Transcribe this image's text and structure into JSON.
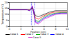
{
  "chart_data": {
    "type": "line",
    "x_label": "Position (cm)",
    "y_label": "Temperature (°C)",
    "x": [
      0,
      1,
      2,
      3,
      3.5,
      4,
      4.5,
      5,
      5.5,
      6,
      7,
      8,
      9,
      10
    ],
    "series": [
      {
        "name": "Case 1",
        "color": "#000000",
        "values": [
          14,
          14,
          14,
          14,
          14,
          15,
          9,
          8,
          9,
          10,
          12,
          13,
          13,
          13
        ]
      },
      {
        "name": "Case 2",
        "color": "#ff0000",
        "values": [
          14,
          14,
          14,
          14,
          13.5,
          15.5,
          7,
          6,
          7.5,
          9,
          11,
          12,
          12,
          12
        ]
      },
      {
        "name": "Case 3",
        "color": "#00aa00",
        "values": [
          14,
          14,
          14,
          14,
          13,
          16,
          5,
          4,
          6,
          8,
          10,
          11,
          11.5,
          11.5
        ]
      },
      {
        "name": "Case 4",
        "color": "#0000ff",
        "values": [
          14,
          14,
          14,
          14,
          13,
          16.5,
          4,
          3,
          5,
          7,
          9,
          10.5,
          11,
          11
        ]
      },
      {
        "name": "Case 5",
        "color": "#cc00cc",
        "values": [
          14,
          14,
          14,
          14,
          13,
          17,
          3,
          2,
          4,
          6,
          8,
          10,
          10.5,
          10.5
        ]
      }
    ],
    "vlines": {
      "x": [
        3.8,
        4.4
      ],
      "color": "#0000ff",
      "line_style": "dashed"
    },
    "xlim": [
      0,
      10
    ],
    "xticks": [
      0,
      2,
      4,
      6,
      8,
      10
    ],
    "ylim": [
      0,
      20
    ],
    "yticks": [
      0,
      5,
      10,
      15,
      20
    ],
    "grid": true,
    "legend": "bottom"
  }
}
